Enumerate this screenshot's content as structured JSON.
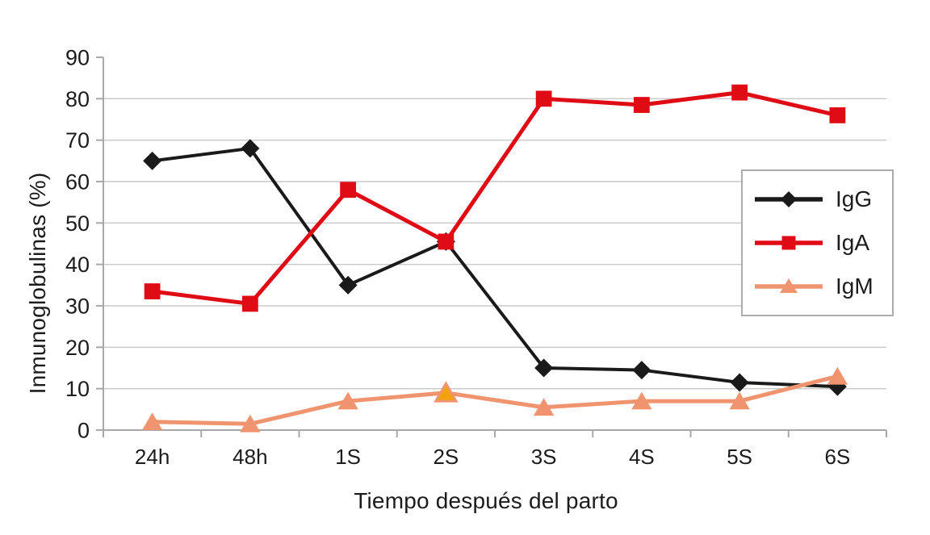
{
  "chart_data": {
    "type": "line",
    "title": "",
    "categories": [
      "24h",
      "48h",
      "1S",
      "2S",
      "3S",
      "4S",
      "5S",
      "6S"
    ],
    "series": [
      {
        "name": "IgG",
        "marker": "diamond",
        "color": "#1A1A1A",
        "line_width": 4,
        "values": [
          65,
          68,
          35,
          45.5,
          15,
          14.5,
          11.5,
          10.5
        ]
      },
      {
        "name": "IgA",
        "marker": "square",
        "color": "#DF0B15",
        "line_width": 5,
        "values": [
          33.5,
          30.5,
          58,
          45.5,
          80,
          78.5,
          81.5,
          76
        ]
      },
      {
        "name": "IgM",
        "marker": "triangle",
        "color": "#F0946F",
        "line_width": 5,
        "values": [
          2,
          1.5,
          7,
          9,
          5.5,
          7,
          7,
          13
        ],
        "point_fill_overrides": {
          "3": "#F2A30C"
        }
      }
    ],
    "xlabel": "Tiempo después del parto",
    "ylabel": "Inmunoglobulinas (%)",
    "ylim": [
      0,
      90
    ],
    "ytick_step": 10,
    "yticks": [
      0,
      10,
      20,
      30,
      40,
      50,
      60,
      70,
      80,
      90
    ],
    "grid": true,
    "legend_position": "right-middle",
    "legend_items": [
      "IgG",
      "IgA",
      "IgM"
    ]
  },
  "colors": {
    "background": "#FFFFFF",
    "gridline": "#C9C9C9",
    "axis": "#A8A8A8",
    "text": "#1C1C1C",
    "igg": "#1A1A1A",
    "iga": "#DF0B15",
    "igm": "#F0946F",
    "igm_highlight_point": "#F2A30C",
    "legend_border": "#ACACAC"
  }
}
